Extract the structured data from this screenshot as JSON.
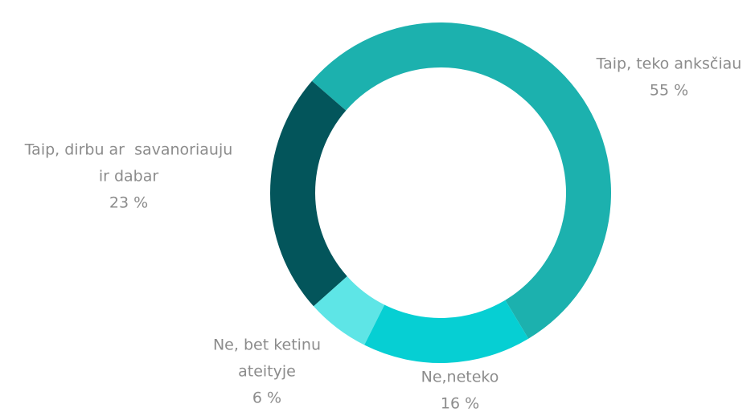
{
  "chart_data": {
    "type": "donut",
    "categories": [
      [
        "Taip, teko anksčiau"
      ],
      [
        "Ne,neteko"
      ],
      [
        "Ne, bet ketinu",
        "ateityje"
      ],
      [
        "Taip, dirbu ar  savanoriauju",
        "ir dabar"
      ]
    ],
    "values": [
      55,
      16,
      6,
      23
    ],
    "value_labels": [
      "55 %",
      "16 %",
      "6 %",
      "23 %"
    ],
    "colors": [
      "#1cb1ae",
      "#06cfd3",
      "#5ee5e6",
      "#03555b"
    ]
  }
}
